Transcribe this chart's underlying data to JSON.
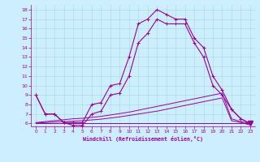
{
  "title": "",
  "xlabel": "Windchill (Refroidissement éolien,°C)",
  "hours": [
    0,
    1,
    2,
    3,
    4,
    5,
    6,
    7,
    8,
    9,
    10,
    11,
    12,
    13,
    14,
    15,
    16,
    17,
    18,
    19,
    20,
    21,
    22,
    23
  ],
  "temp": [
    9,
    7,
    7,
    6.1,
    6.1,
    6.1,
    8,
    8.2,
    10,
    10.2,
    13,
    16.5,
    17,
    18,
    17.5,
    17,
    17,
    15,
    14,
    11,
    9.5,
    7.5,
    6.5,
    6.0
  ],
  "windchill": [
    9,
    7,
    7,
    6.1,
    5.8,
    5.8,
    7,
    7.3,
    9,
    9.2,
    11,
    14.5,
    15.5,
    17,
    16.5,
    16.5,
    16.5,
    14.5,
    13,
    10,
    9.0,
    7.5,
    6.5,
    6.0
  ],
  "bg_color": "#cceeff",
  "grid_color": "#aadddd",
  "line_color": "#990099",
  "ylim": [
    5.7,
    18.5
  ],
  "xlim": [
    -0.5,
    23.5
  ],
  "yticks": [
    6,
    7,
    8,
    9,
    10,
    11,
    12,
    13,
    14,
    15,
    16,
    17,
    18
  ],
  "xticks": [
    0,
    1,
    2,
    3,
    4,
    5,
    6,
    7,
    8,
    9,
    10,
    11,
    12,
    13,
    14,
    15,
    16,
    17,
    18,
    19,
    20,
    21,
    22,
    23
  ],
  "trend1_x": [
    0,
    1,
    2,
    3,
    4,
    5,
    6,
    7,
    8,
    9,
    10,
    11,
    12,
    13,
    14,
    15,
    16,
    17,
    18,
    19,
    20,
    21,
    22,
    23
  ],
  "trend1_y": [
    6.1,
    6.2,
    6.3,
    6.4,
    6.5,
    6.55,
    6.65,
    6.75,
    6.9,
    7.05,
    7.2,
    7.4,
    7.6,
    7.8,
    8.0,
    8.2,
    8.4,
    8.6,
    8.8,
    9.0,
    9.2,
    6.5,
    6.2,
    6.0
  ],
  "trend2_x": [
    0,
    1,
    2,
    3,
    4,
    5,
    6,
    7,
    8,
    9,
    10,
    11,
    12,
    13,
    14,
    15,
    16,
    17,
    18,
    19,
    20,
    21,
    22,
    23
  ],
  "trend2_y": [
    6.05,
    6.1,
    6.15,
    6.2,
    6.25,
    6.3,
    6.38,
    6.46,
    6.58,
    6.7,
    6.85,
    7.0,
    7.15,
    7.3,
    7.5,
    7.7,
    7.9,
    8.1,
    8.3,
    8.5,
    8.7,
    6.3,
    6.1,
    5.85
  ],
  "flat_y": [
    6.0,
    6.0,
    6.0,
    6.0,
    6.0,
    6.0,
    6.0,
    6.0,
    6.0,
    6.0,
    6.0,
    6.0,
    6.0,
    6.0,
    6.0,
    6.0,
    6.0,
    6.0,
    6.0,
    6.0,
    6.0,
    6.0,
    6.0,
    6.0
  ]
}
